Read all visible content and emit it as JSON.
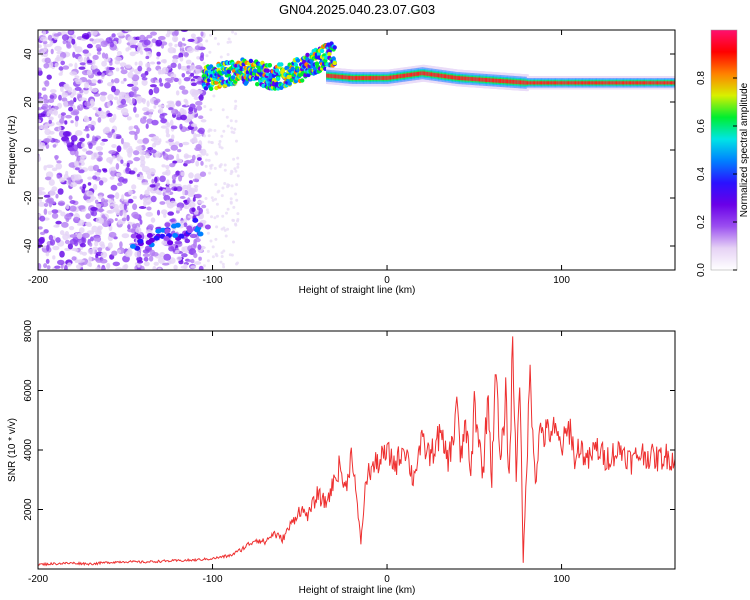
{
  "title": "GN04.2025.040.23.07.G03",
  "colors": {
    "snr_line": "#ee3030",
    "axes": "#000000"
  },
  "colorbar": {
    "label": "Normalized spectral amplitude",
    "range": [
      0,
      1
    ],
    "ticks": [
      "0.0",
      "0.2",
      "0.4",
      "0.6",
      "0.8"
    ],
    "colormap": [
      "#ffffff",
      "#e6d2f5",
      "#9b4ff0",
      "#6a00e8",
      "#2a12ff",
      "#0080ff",
      "#00e5e5",
      "#00ee30",
      "#d8f000",
      "#ff8000",
      "#ff0000",
      "#ff1070"
    ]
  },
  "chart_data": [
    {
      "type": "heatmap",
      "title": "GN04.2025.040.23.07.G03",
      "xlabel": "Height of straight line (km)",
      "ylabel": "Frequency (Hz)",
      "xlim": [
        -200,
        165
      ],
      "ylim": [
        -50,
        50
      ],
      "xticks": [
        -200,
        -100,
        0,
        100
      ],
      "yticks": [
        -40,
        -20,
        0,
        20,
        40
      ],
      "features": {
        "noise_region_x": [
          -200,
          -105
        ],
        "upper_ridge": [
          [
            -105,
            30
          ],
          [
            -95,
            31
          ],
          [
            -85,
            33
          ],
          [
            -75,
            32
          ],
          [
            -65,
            30
          ],
          [
            -55,
            32
          ],
          [
            -45,
            35
          ],
          [
            -38,
            38
          ],
          [
            -30,
            40
          ]
        ],
        "main_trace": [
          [
            -35,
            31
          ],
          [
            -20,
            30
          ],
          [
            0,
            30
          ],
          [
            20,
            32
          ],
          [
            40,
            30
          ],
          [
            60,
            29
          ],
          [
            80,
            28
          ],
          [
            100,
            28
          ],
          [
            130,
            28
          ],
          [
            165,
            28
          ]
        ],
        "lower_cluster": [
          [
            -140,
            -38
          ],
          [
            -130,
            -36
          ],
          [
            -120,
            -34
          ],
          [
            -108,
            -32
          ]
        ]
      }
    },
    {
      "type": "line",
      "xlabel": "Height of straight line (km)",
      "ylabel": "SNR (10 * v/v)",
      "xlim": [
        -200,
        165
      ],
      "ylim": [
        0,
        8000
      ],
      "xticks": [
        -200,
        -100,
        0,
        100
      ],
      "yticks": [
        2000,
        4000,
        6000,
        8000
      ],
      "series": [
        {
          "color": "#ee3030",
          "x": [
            -200,
            -190,
            -180,
            -170,
            -160,
            -150,
            -140,
            -130,
            -120,
            -110,
            -100,
            -90,
            -85,
            -80,
            -75,
            -70,
            -65,
            -60,
            -55,
            -50,
            -45,
            -40,
            -35,
            -30,
            -27,
            -24,
            -20,
            -17,
            -15,
            -12,
            -10,
            -5,
            0,
            5,
            10,
            15,
            18,
            20,
            25,
            30,
            35,
            38,
            40,
            42,
            45,
            48,
            50,
            55,
            58,
            60,
            62,
            65,
            68,
            70,
            72,
            74,
            76,
            78,
            80,
            82,
            85,
            88,
            90,
            95,
            100,
            103,
            105,
            108,
            110,
            115,
            120,
            125,
            130,
            135,
            140,
            145,
            150,
            155,
            160,
            165
          ],
          "values": [
            150,
            180,
            200,
            170,
            220,
            250,
            230,
            260,
            280,
            300,
            350,
            450,
            600,
            800,
            1000,
            900,
            1200,
            1000,
            1500,
            2000,
            1800,
            2500,
            2200,
            3000,
            3500,
            2600,
            4000,
            2000,
            900,
            3000,
            3300,
            3600,
            3900,
            3500,
            4200,
            3000,
            3900,
            4200,
            3800,
            4500,
            3700,
            4300,
            6000,
            3500,
            5000,
            3000,
            5600,
            3200,
            6000,
            2800,
            7000,
            3400,
            5800,
            3000,
            7600,
            3100,
            6800,
            200,
            3500,
            6600,
            3000,
            4800,
            4500,
            4700,
            4100,
            4500,
            4800,
            3500,
            4200,
            3600,
            4100,
            3700,
            3900,
            4000,
            3600,
            3900,
            3800,
            3700,
            3800,
            3700
          ]
        }
      ]
    }
  ]
}
